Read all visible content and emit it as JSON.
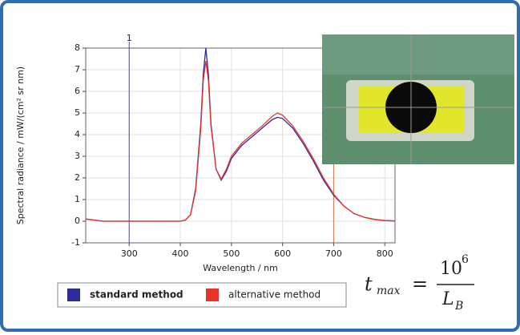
{
  "chart_data": {
    "type": "line",
    "x_label": "Wavelength / nm",
    "y_label": "Spectral radiance / mW/(cm² sr nm)",
    "xlim": [
      215,
      820
    ],
    "ylim": [
      -1,
      8
    ],
    "xticks": [
      300,
      400,
      500,
      600,
      700,
      800
    ],
    "yticks": [
      -1,
      0,
      1,
      2,
      3,
      4,
      5,
      6,
      7,
      8
    ],
    "grid": true,
    "x": [
      215,
      250,
      300,
      350,
      400,
      410,
      420,
      430,
      440,
      445,
      450,
      455,
      460,
      470,
      480,
      490,
      500,
      520,
      540,
      560,
      580,
      590,
      600,
      620,
      640,
      660,
      680,
      700,
      720,
      740,
      760,
      780,
      800,
      820
    ],
    "series": [
      {
        "name": "standard method",
        "color": "#2b2b9b",
        "values": [
          0.1,
          0,
          0,
          0,
          0,
          0.05,
          0.3,
          1.5,
          4.5,
          6.8,
          8,
          6.8,
          4.5,
          2.4,
          1.9,
          2.3,
          2.9,
          3.5,
          3.9,
          4.3,
          4.7,
          4.8,
          4.75,
          4.3,
          3.6,
          2.8,
          1.9,
          1.2,
          0.7,
          0.35,
          0.18,
          0.08,
          0.03,
          0.01
        ]
      },
      {
        "name": "alternative method",
        "color": "#e8332a",
        "values": [
          0.1,
          0,
          0,
          0,
          0,
          0.05,
          0.3,
          1.4,
          4.3,
          6.5,
          7.4,
          6.5,
          4.4,
          2.4,
          1.95,
          2.4,
          3.0,
          3.6,
          4.0,
          4.4,
          4.85,
          5.0,
          4.9,
          4.4,
          3.7,
          2.9,
          2.0,
          1.25,
          0.7,
          0.35,
          0.18,
          0.08,
          0.03,
          0.01
        ]
      }
    ],
    "markers": [
      {
        "x": 300,
        "label": "1",
        "color": "#4a4ab0"
      },
      {
        "x": 700,
        "color": "#e0704a"
      }
    ]
  },
  "formula": {
    "lhs": "t",
    "lhs_sub": "max",
    "equals": "=",
    "num_base": "10",
    "num_exp": "6",
    "den_base": "L",
    "den_sub": "B"
  }
}
